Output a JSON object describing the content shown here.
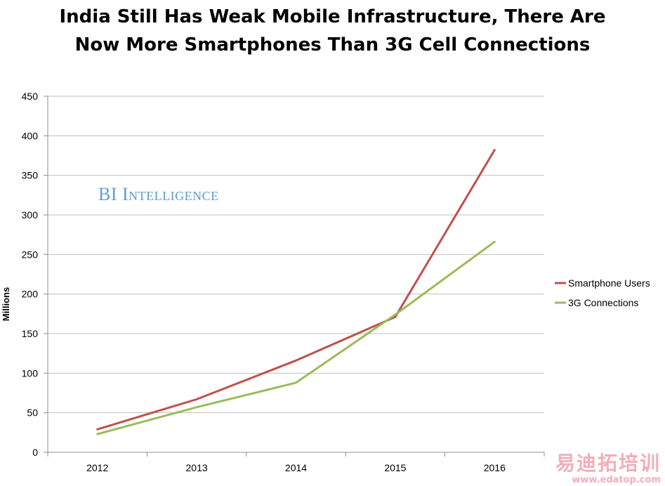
{
  "chart_data": {
    "type": "line",
    "title_lines": [
      "India Still Has Weak Mobile Infrastructure, There Are",
      "Now More Smartphones Than 3G Cell Connections"
    ],
    "xlabel": "",
    "ylabel": "Millions",
    "categories": [
      "2012",
      "2013",
      "2014",
      "2015",
      "2016"
    ],
    "ylim": [
      0,
      450
    ],
    "yticks": [
      "0",
      "50",
      "100",
      "150",
      "200",
      "250",
      "300",
      "350",
      "400",
      "450"
    ],
    "grid": "horizontal",
    "legend_position": "right",
    "series": [
      {
        "name": "Smartphone Users",
        "color": "#c0504d",
        "values": [
          29,
          67,
          116,
          171,
          382
        ]
      },
      {
        "name": "3G Connections",
        "color": "#9bbb59",
        "values": [
          23,
          57,
          88,
          174,
          266
        ]
      }
    ]
  },
  "watermark": "BI Intelligence",
  "site_logo": {
    "text": "易迪拓培训",
    "url": "www.edatop.com"
  }
}
